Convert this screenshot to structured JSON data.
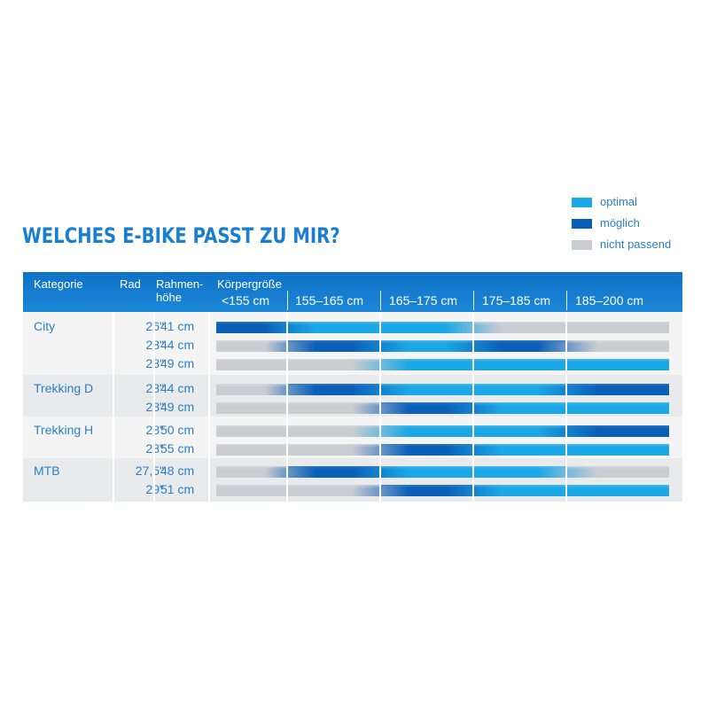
{
  "title": "WELCHES E-BIKE PASST ZU MIR?",
  "legend": [
    {
      "label": "optimal",
      "color": "#1ca7e6"
    },
    {
      "label": "möglich",
      "color": "#0a5fb8"
    },
    {
      "label": "nicht passend",
      "color": "#c9ccd1"
    }
  ],
  "header": {
    "kategorie": "Kategorie",
    "rad": "Rad",
    "rahmen1": "Rahmen-",
    "rahmen2": "höhe",
    "koerpergroesse": "Körpergröße"
  },
  "chart_data": {
    "type": "table",
    "title": "WELCHES E-BIKE PASST ZU MIR?",
    "size_ranges": [
      "<155 cm",
      "155–165 cm",
      "165–175 cm",
      "175–185 cm",
      "185–200 cm"
    ],
    "status_legend": {
      "optimal": "optimal",
      "possible": "möglich",
      "unsuitable": "nicht passend"
    },
    "groups": [
      {
        "category": "City",
        "rows": [
          {
            "wheel": "26\"",
            "frame": "41 cm",
            "fit": [
              "möglich",
              "optimal",
              "optimal",
              "nicht passend",
              "nicht passend"
            ]
          },
          {
            "wheel": "28\"",
            "frame": "44 cm",
            "fit": [
              "nicht passend",
              "möglich",
              "optimal",
              "möglich",
              "nicht passend"
            ]
          },
          {
            "wheel": "28\"",
            "frame": "49 cm",
            "fit": [
              "nicht passend",
              "nicht passend",
              "optimal",
              "optimal",
              "optimal"
            ]
          }
        ]
      },
      {
        "category": "Trekking D",
        "rows": [
          {
            "wheel": "28\"",
            "frame": "44 cm",
            "fit": [
              "nicht passend",
              "möglich",
              "optimal",
              "optimal",
              "möglich"
            ]
          },
          {
            "wheel": "28\"",
            "frame": "49 cm",
            "fit": [
              "nicht passend",
              "nicht passend",
              "möglich",
              "optimal",
              "optimal"
            ]
          }
        ]
      },
      {
        "category": "Trekking H",
        "rows": [
          {
            "wheel": "28\"",
            "frame": "50 cm",
            "fit": [
              "nicht passend",
              "nicht passend",
              "optimal",
              "optimal",
              "möglich"
            ]
          },
          {
            "wheel": "28\"",
            "frame": "55 cm",
            "fit": [
              "nicht passend",
              "nicht passend",
              "möglich",
              "optimal",
              "optimal"
            ]
          }
        ]
      },
      {
        "category": "MTB",
        "rows": [
          {
            "wheel": "27,5\"",
            "frame": "48 cm",
            "fit": [
              "nicht passend",
              "möglich",
              "optimal",
              "optimal",
              "nicht passend"
            ]
          },
          {
            "wheel": "29\"",
            "frame": "51 cm",
            "fit": [
              "nicht passend",
              "nicht passend",
              "möglich",
              "optimal",
              "optimal"
            ]
          }
        ]
      }
    ]
  }
}
